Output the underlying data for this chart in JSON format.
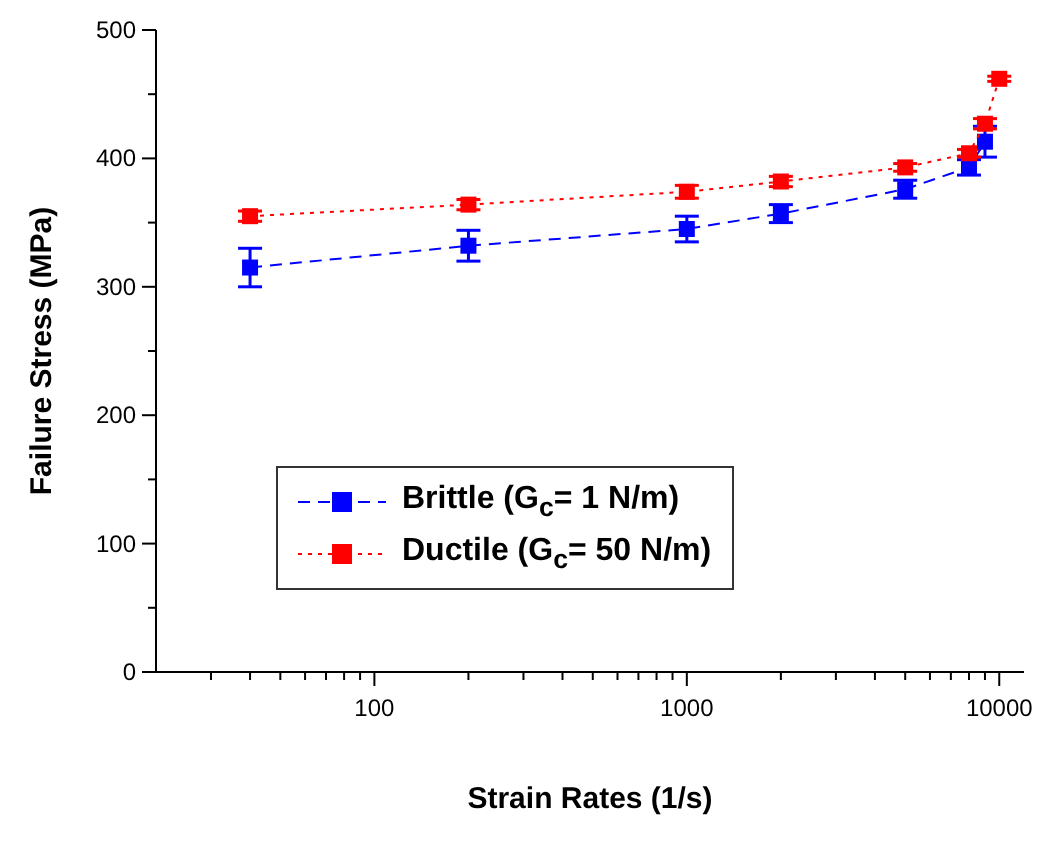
{
  "chart_data": {
    "type": "line",
    "xlabel": "Strain Rates (1/s)",
    "ylabel": "Failure Stress (MPa)",
    "log": "x",
    "xlim": [
      20,
      12000
    ],
    "ylim": [
      0,
      500
    ],
    "xticks": [
      {
        "value": 30,
        "label": null
      },
      {
        "value": 40,
        "label": null
      },
      {
        "value": 50,
        "label": null
      },
      {
        "value": 60,
        "label": null
      },
      {
        "value": 70,
        "label": null
      },
      {
        "value": 80,
        "label": null
      },
      {
        "value": 90,
        "label": null
      },
      100,
      {
        "value": 200,
        "label": null
      },
      {
        "value": 300,
        "label": null
      },
      {
        "value": 400,
        "label": null
      },
      {
        "value": 500,
        "label": null
      },
      {
        "value": 600,
        "label": null
      },
      {
        "value": 700,
        "label": null
      },
      {
        "value": 800,
        "label": null
      },
      {
        "value": 900,
        "label": null
      },
      1000,
      {
        "value": 2000,
        "label": null
      },
      {
        "value": 3000,
        "label": null
      },
      {
        "value": 4000,
        "label": null
      },
      {
        "value": 5000,
        "label": null
      },
      {
        "value": 6000,
        "label": null
      },
      {
        "value": 7000,
        "label": null
      },
      {
        "value": 8000,
        "label": null
      },
      {
        "value": 9000,
        "label": null
      },
      10000
    ],
    "yticks": [
      0,
      {
        "value": 50,
        "label": null
      },
      100,
      {
        "value": 150,
        "label": null
      },
      200,
      {
        "value": 250,
        "label": null
      },
      300,
      {
        "value": 350,
        "label": null
      },
      400,
      {
        "value": 450,
        "label": null
      },
      500
    ],
    "marker": "square",
    "legend": "left",
    "series": [
      {
        "name": "Brittle (G$_{c}$= 1 N/m)",
        "color": "#0000ff",
        "line_style": "dashed",
        "x": [
          40,
          200,
          1000,
          2000,
          5000,
          8000,
          9000
        ],
        "values": [
          315,
          332,
          345,
          357,
          376,
          393,
          413
        ],
        "errors": [
          15,
          12,
          10,
          7,
          7,
          6,
          12
        ]
      },
      {
        "name": "Ductile (G$_{c}$= 50 N/m)",
        "color": "#ff0000",
        "line_style": "dotted",
        "x": [
          40,
          200,
          1000,
          2000,
          5000,
          8000,
          9000,
          10000
        ],
        "values": [
          355,
          364,
          374,
          382,
          393,
          404,
          427,
          462
        ],
        "errors": [
          4,
          4,
          5,
          4,
          3,
          3,
          4,
          2
        ]
      }
    ]
  }
}
